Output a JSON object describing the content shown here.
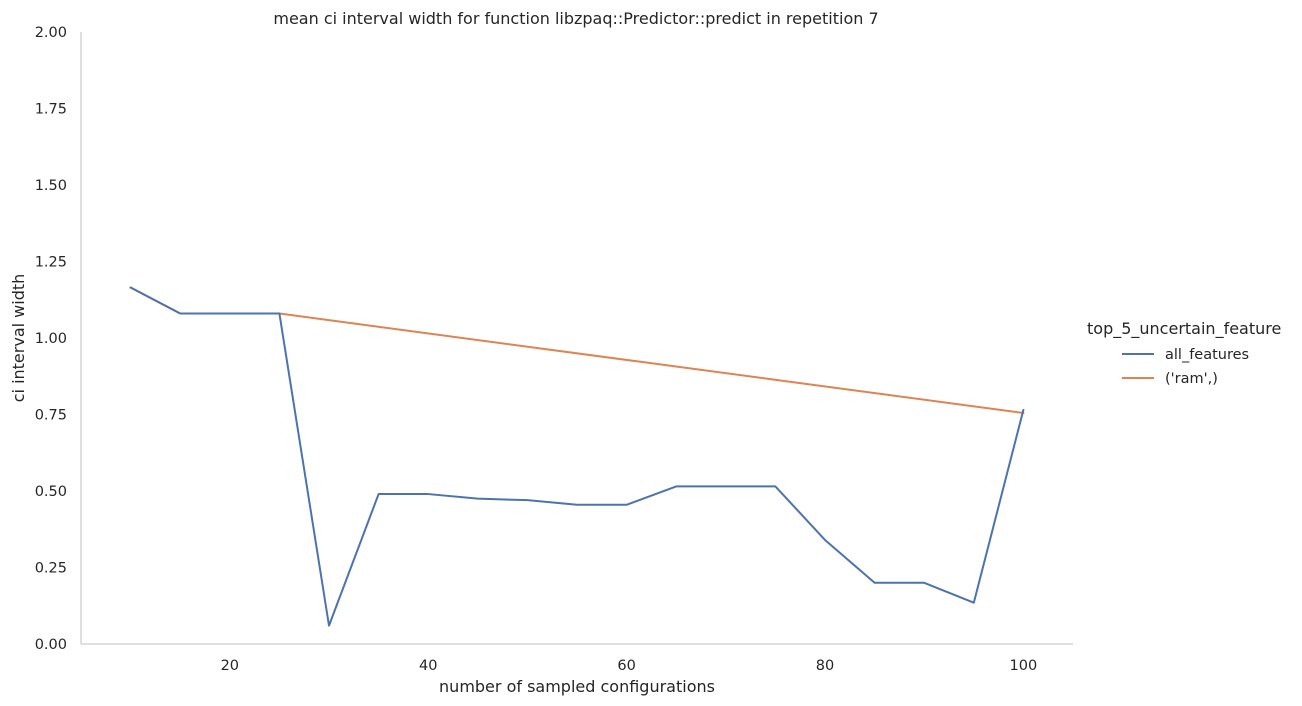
{
  "chart_data": {
    "type": "line",
    "title": "mean ci interval width for function libzpaq::Predictor::predict in repetition 7",
    "xlabel": "number of sampled configurations",
    "ylabel": "ci interval width",
    "xlim": [
      5,
      105
    ],
    "ylim": [
      0,
      2.0
    ],
    "x_ticks": [
      20,
      40,
      60,
      80,
      100
    ],
    "y_ticks": [
      0.0,
      0.25,
      0.5,
      0.75,
      1.0,
      1.25,
      1.5,
      1.75,
      2.0
    ],
    "x_tick_labels": [
      "20",
      "40",
      "60",
      "80",
      "100"
    ],
    "y_tick_labels": [
      "0.00",
      "0.25",
      "0.50",
      "0.75",
      "1.00",
      "1.25",
      "1.50",
      "1.75",
      "2.00"
    ],
    "grid": false,
    "legend": {
      "title": "top_5_uncertain_feature",
      "placement": "right"
    },
    "series": [
      {
        "name": "all_features",
        "color": "#4c72b0",
        "x": [
          10,
          15,
          20,
          25,
          30,
          35,
          40,
          45,
          50,
          55,
          60,
          65,
          70,
          75,
          80,
          85,
          90,
          95,
          100
        ],
        "values": [
          1.165,
          1.08,
          1.08,
          1.08,
          0.06,
          0.49,
          0.49,
          0.475,
          0.47,
          0.455,
          0.455,
          0.515,
          0.515,
          0.515,
          0.34,
          0.2,
          0.2,
          0.135,
          0.765
        ]
      },
      {
        "name": "('ram',)",
        "color": "#dd8452",
        "x": [
          10,
          15,
          20,
          25,
          100
        ],
        "values": [
          1.165,
          1.08,
          1.08,
          1.08,
          0.755
        ]
      }
    ]
  }
}
